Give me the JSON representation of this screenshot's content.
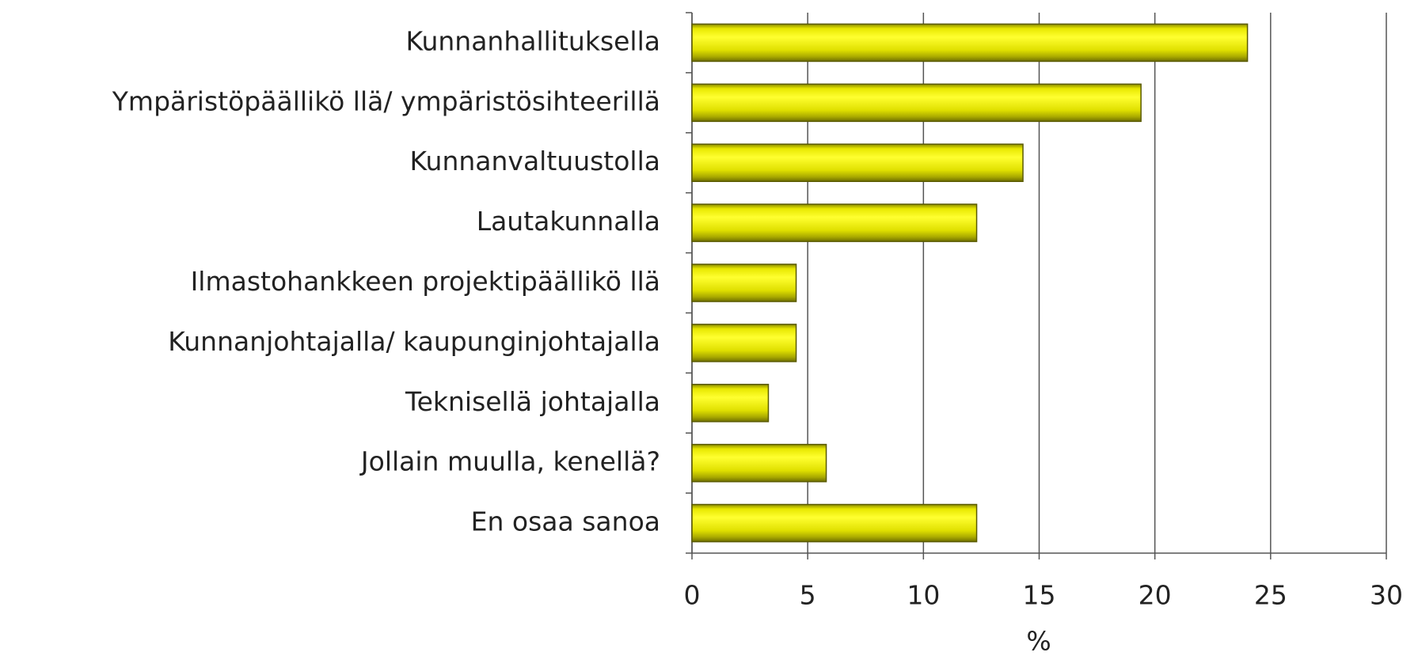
{
  "chart_data": {
    "type": "barh",
    "categories": [
      "Kunnanhallituksella",
      "Ympäristöpäällikö llä/ ympäristösihteerillä",
      "Kunnanvaltuustolla",
      "Lautakunnalla",
      "Ilmastohankkeen projektipäällikö llä",
      "Kunnanjohtajalla/ kaupunginjohtajalla",
      "Teknisellä johtajalla",
      "Jollain muulla, kenellä?",
      "En osaa sanoa"
    ],
    "values": [
      24,
      19.4,
      14.3,
      12.3,
      4.5,
      4.5,
      3.3,
      5.8,
      12.3
    ],
    "color": "#ffff00",
    "xlabel": "%",
    "xlim": [
      0,
      30
    ],
    "xticks": [
      0,
      5,
      10,
      15,
      20,
      25,
      30
    ],
    "grid": true
  }
}
